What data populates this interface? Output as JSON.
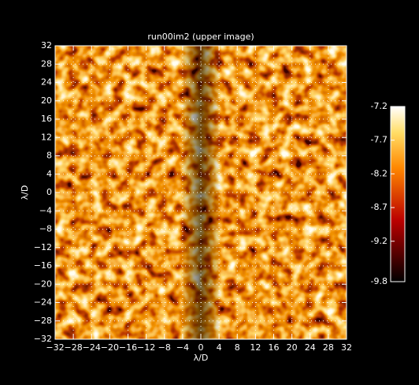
{
  "chart_data": {
    "type": "heatmap",
    "title": "run00im2 (upper image)",
    "x_label": "λ/D",
    "y_label": "λ/D",
    "xlim": [
      -32,
      32
    ],
    "ylim": [
      -32,
      32
    ],
    "xticks": [
      {
        "value": -32,
        "label": "−32"
      },
      {
        "value": -28,
        "label": "−28"
      },
      {
        "value": -24,
        "label": "−24"
      },
      {
        "value": -20,
        "label": "−20"
      },
      {
        "value": -16,
        "label": "−16"
      },
      {
        "value": -12,
        "label": "−12"
      },
      {
        "value": -8,
        "label": "−8"
      },
      {
        "value": -4,
        "label": "−4"
      },
      0,
      4,
      8,
      12,
      16,
      20,
      24,
      28,
      32
    ],
    "yticks": [
      {
        "value": -32,
        "label": "−32"
      },
      {
        "value": -28,
        "label": "−28"
      },
      {
        "value": -24,
        "label": "−24"
      },
      {
        "value": -20,
        "label": "−20"
      },
      {
        "value": -16,
        "label": "−16"
      },
      {
        "value": -12,
        "label": "−12"
      },
      {
        "value": -8,
        "label": "−8"
      },
      {
        "value": -4,
        "label": "−4"
      },
      0,
      4,
      8,
      12,
      16,
      20,
      24,
      28,
      32
    ],
    "grid": true,
    "colorbar": {
      "lim": [
        -9.8,
        -7.2
      ],
      "ticks": [
        -7.2,
        -7.7,
        -8.2,
        -8.7,
        -9.2,
        -9.8
      ]
    }
  }
}
